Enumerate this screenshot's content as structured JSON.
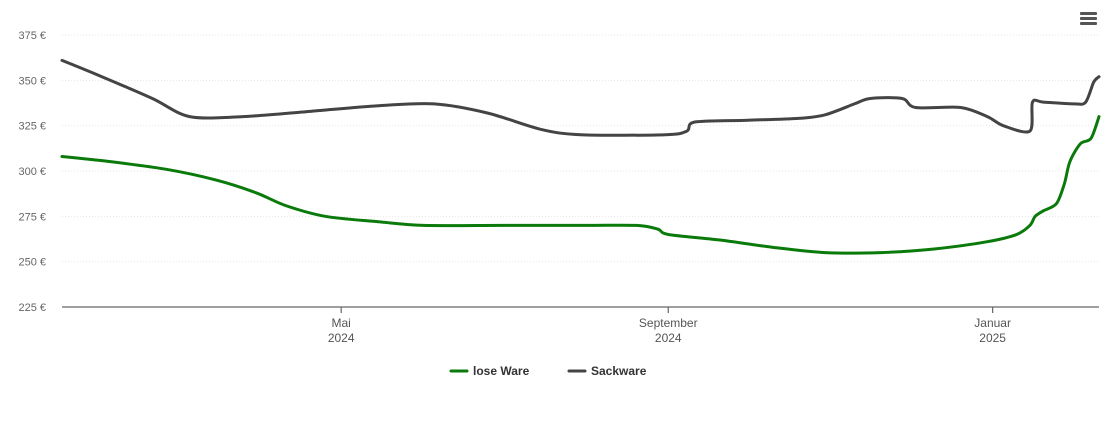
{
  "chart_data": {
    "type": "line",
    "currency_suffix": " €",
    "ylim": [
      225,
      375
    ],
    "yticks": [
      225,
      250,
      275,
      300,
      325,
      350,
      375
    ],
    "xlim": [
      "2024-01-17",
      "2025-02-10"
    ],
    "xticks": [
      {
        "date": "2024-05-01",
        "line1": "Mai",
        "line2": "2024"
      },
      {
        "date": "2024-09-01",
        "line1": "September",
        "line2": "2024"
      },
      {
        "date": "2025-01-01",
        "line1": "Januar",
        "line2": "2025"
      }
    ],
    "grid": true,
    "legend_position": "bottom-center",
    "series": [
      {
        "name": "lose Ware",
        "color": "#0a7a0a",
        "points": [
          [
            "2024-01-17",
            308
          ],
          [
            "2024-02-05",
            305
          ],
          [
            "2024-02-25",
            301
          ],
          [
            "2024-03-15",
            295
          ],
          [
            "2024-03-30",
            288
          ],
          [
            "2024-04-10",
            281
          ],
          [
            "2024-04-25",
            275
          ],
          [
            "2024-05-15",
            272
          ],
          [
            "2024-06-01",
            270
          ],
          [
            "2024-07-01",
            270
          ],
          [
            "2024-08-01",
            270
          ],
          [
            "2024-08-20",
            270
          ],
          [
            "2024-08-28",
            268
          ],
          [
            "2024-09-01",
            265
          ],
          [
            "2024-09-20",
            262
          ],
          [
            "2024-10-10",
            258
          ],
          [
            "2024-10-30",
            255
          ],
          [
            "2024-11-20",
            255
          ],
          [
            "2024-12-10",
            257
          ],
          [
            "2024-12-30",
            261
          ],
          [
            "2025-01-10",
            265
          ],
          [
            "2025-01-15",
            270
          ],
          [
            "2025-01-17",
            275
          ],
          [
            "2025-01-20",
            278
          ],
          [
            "2025-01-25",
            282
          ],
          [
            "2025-01-28",
            293
          ],
          [
            "2025-01-30",
            305
          ],
          [
            "2025-02-03",
            315
          ],
          [
            "2025-02-07",
            318
          ],
          [
            "2025-02-10",
            330
          ]
        ]
      },
      {
        "name": "Sackware",
        "color": "#444444",
        "points": [
          [
            "2024-01-17",
            361
          ],
          [
            "2024-02-01",
            352
          ],
          [
            "2024-02-20",
            340
          ],
          [
            "2024-03-05",
            330
          ],
          [
            "2024-03-25",
            330
          ],
          [
            "2024-04-20",
            333
          ],
          [
            "2024-05-15",
            336
          ],
          [
            "2024-06-05",
            337
          ],
          [
            "2024-06-25",
            332
          ],
          [
            "2024-07-15",
            323
          ],
          [
            "2024-07-30",
            320
          ],
          [
            "2024-08-31",
            320
          ],
          [
            "2024-09-08",
            322
          ],
          [
            "2024-09-11",
            327
          ],
          [
            "2024-10-01",
            328
          ],
          [
            "2024-10-20",
            329
          ],
          [
            "2024-10-30",
            331
          ],
          [
            "2024-11-10",
            337
          ],
          [
            "2024-11-16",
            340
          ],
          [
            "2024-11-28",
            340
          ],
          [
            "2024-12-03",
            335
          ],
          [
            "2024-12-20",
            335
          ],
          [
            "2024-12-30",
            330
          ],
          [
            "2025-01-05",
            325
          ],
          [
            "2025-01-15",
            322
          ],
          [
            "2025-01-16",
            338
          ],
          [
            "2025-01-20",
            338
          ],
          [
            "2025-02-01",
            337
          ],
          [
            "2025-02-05",
            338
          ],
          [
            "2025-02-08",
            349
          ],
          [
            "2025-02-10",
            352
          ]
        ]
      }
    ]
  }
}
